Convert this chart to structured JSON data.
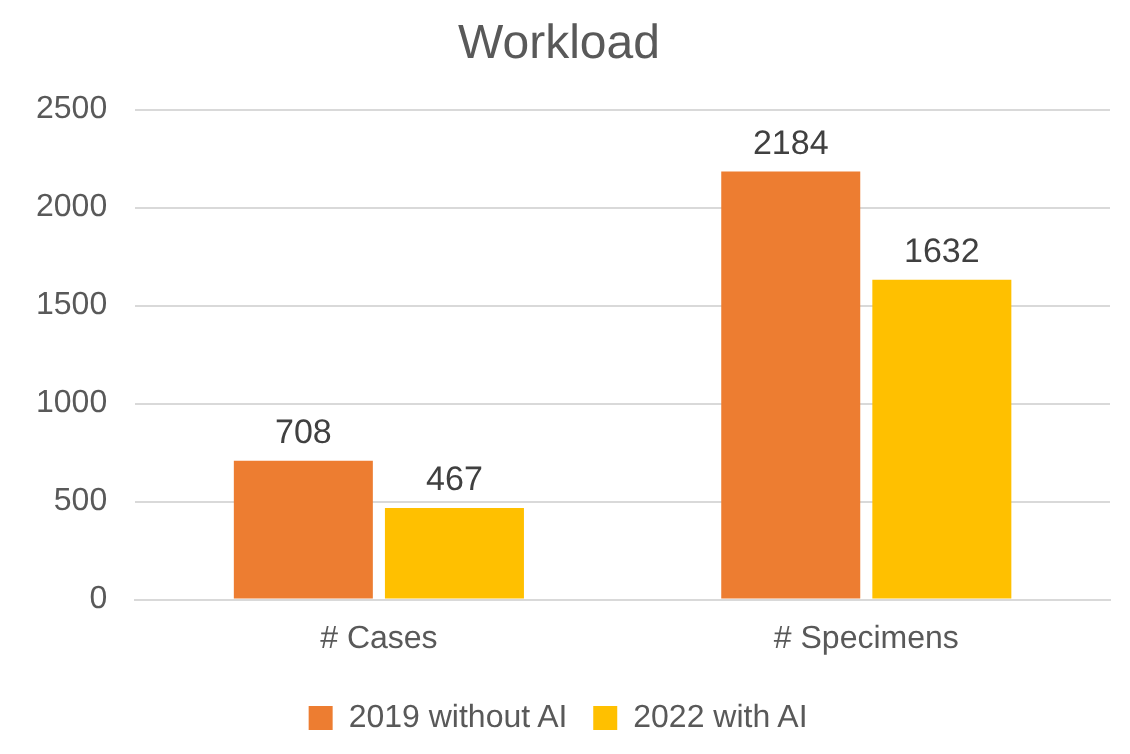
{
  "chart_data": {
    "type": "bar",
    "title": "Workload",
    "categories": [
      "# Cases",
      "# Specimens"
    ],
    "series": [
      {
        "name": "2019 without AI",
        "color": "#ed7d31",
        "values": [
          708,
          2184
        ]
      },
      {
        "name": "2022 with AI",
        "color": "#ffc000",
        "values": [
          467,
          1632
        ]
      }
    ],
    "ylim": [
      0,
      2500
    ],
    "yticks": [
      0,
      500,
      1000,
      1500,
      2000,
      2500
    ],
    "grid": "y",
    "legend": "bottom",
    "data_labels": true
  }
}
